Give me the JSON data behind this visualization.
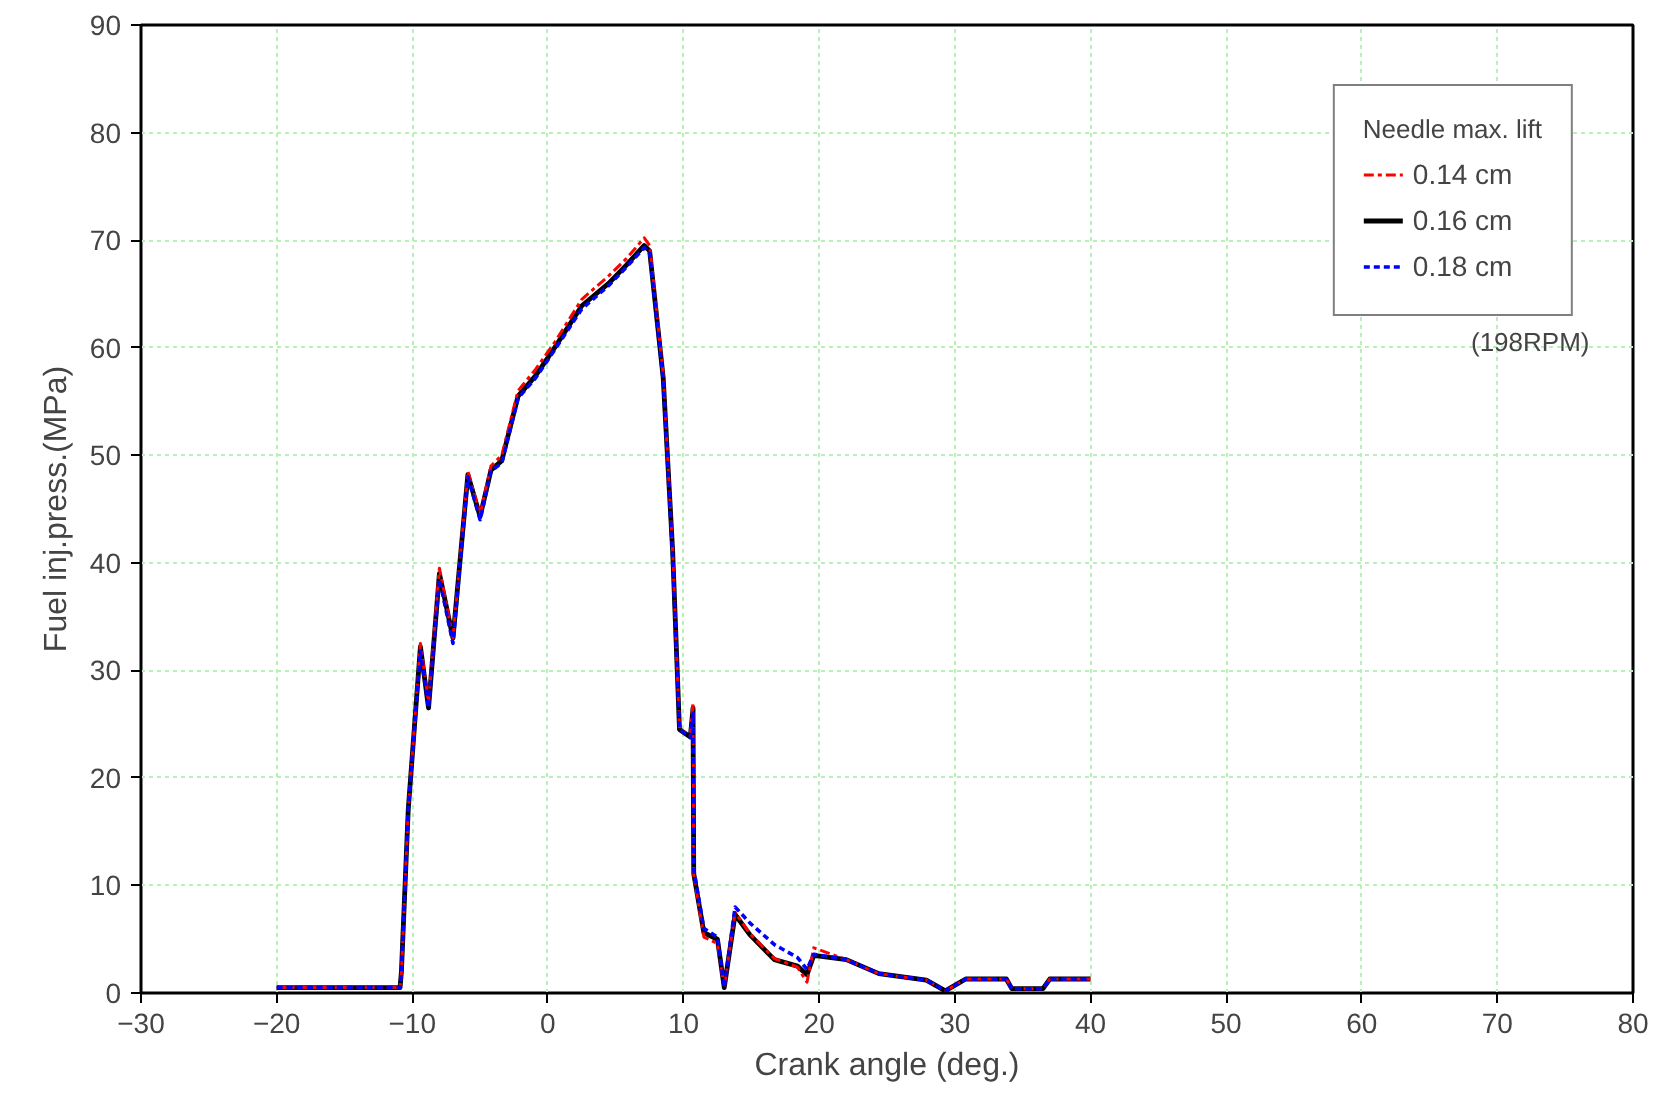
{
  "chart_data": {
    "type": "line",
    "xlabel": "Crank angle (deg.)",
    "ylabel": "Fuel inj.press.(MPa)",
    "legend_title": "Needle max. lift",
    "annotations": [
      "(198RPM)"
    ],
    "xlim": [
      -30,
      80
    ],
    "ylim": [
      0,
      90
    ],
    "xticks": [
      -30,
      -20,
      -10,
      0,
      10,
      20,
      30,
      40,
      50,
      60,
      70,
      80
    ],
    "yticks": [
      0,
      10,
      20,
      30,
      40,
      50,
      60,
      70,
      80,
      90
    ],
    "grid": true,
    "legend": "top right",
    "x": [
      -20,
      -10.9,
      -10.8,
      -10.3,
      -9.4,
      -8.8,
      -8.0,
      -7.0,
      -5.9,
      -5.0,
      -4.2,
      -3.4,
      -2.2,
      -0.9,
      0.5,
      2.5,
      4.5,
      5.8,
      7.1,
      7.5,
      8.5,
      9.2,
      9.7,
      10.5,
      10.7,
      10.75,
      11.5,
      12.5,
      13.0,
      13.8,
      14.9,
      16.7,
      18.4,
      19.1,
      19.6,
      22.0,
      24.4,
      27.9,
      29.3,
      30.8,
      33.8,
      34.2,
      36.5,
      37.0,
      40.0
    ],
    "series": [
      {
        "name": "0.14 cm",
        "color": "#ff0000",
        "line_style": "dashed",
        "values": [
          0.5,
          0.5,
          2,
          17,
          32.5,
          27,
          39.5,
          33,
          48.5,
          44.5,
          49,
          50,
          56,
          58,
          60.5,
          64.5,
          66.7,
          68.3,
          70.2,
          69.5,
          57.5,
          41,
          24.5,
          24,
          27,
          11,
          5.2,
          4.6,
          0.5,
          7.5,
          5.5,
          3.2,
          2.4,
          1.0,
          4.2,
          3.1,
          1.8,
          1.2,
          0.2,
          1.3,
          1.3,
          0.4,
          0.4,
          1.3,
          1.3
        ]
      },
      {
        "name": "0.16 cm",
        "color": "#000000",
        "line_style": "solid",
        "values": [
          0.5,
          0.5,
          2,
          17,
          32.2,
          26.5,
          39,
          33,
          48.2,
          44.3,
          48.6,
          49.5,
          55.5,
          57.4,
          60,
          63.9,
          66,
          67.7,
          69.5,
          69,
          57.2,
          41,
          24.5,
          23.8,
          26.5,
          11.1,
          5.6,
          5,
          0.5,
          7.3,
          5.4,
          3.1,
          2.5,
          1.7,
          3.5,
          3.1,
          1.8,
          1.2,
          0.2,
          1.3,
          1.3,
          0.4,
          0.4,
          1.3,
          1.3
        ]
      },
      {
        "name": "0.18 cm",
        "color": "#0000ff",
        "line_style": "dotted",
        "values": [
          0.5,
          0.5,
          2,
          17,
          31.8,
          26.5,
          38.5,
          32.5,
          48,
          44,
          48.5,
          49.3,
          55.3,
          57.2,
          59.8,
          63.6,
          65.8,
          67.5,
          69.3,
          68.8,
          57,
          40.5,
          24.5,
          23.8,
          26,
          11.5,
          6,
          5.2,
          0.5,
          8,
          6.5,
          4.5,
          3.3,
          2.2,
          3.6,
          3.1,
          1.8,
          1.2,
          0.2,
          1.3,
          1.3,
          0.4,
          0.4,
          1.3,
          1.3
        ]
      }
    ]
  }
}
